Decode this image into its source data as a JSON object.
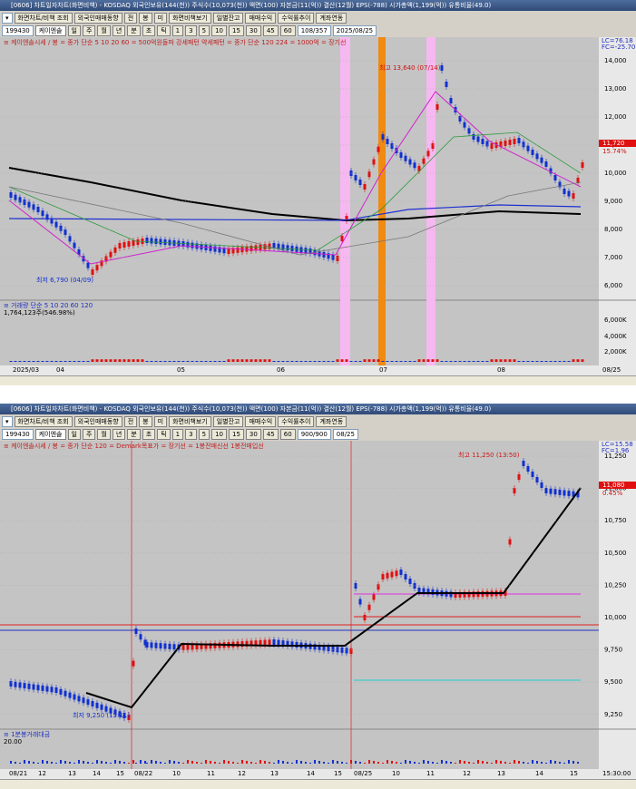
{
  "windows": [
    {
      "title": "[0606] 차트일자차트(화면비책) - KOSDAQ 외국인보유(144(천)) 주식수(10,073(천)) 액면(100) 자본금(11(억)) 결산(12월) EPS(-788) 시가총액(1,199(억)) 유통비율(49.0)",
      "toolbar": [
        "화면차트/비책 조회",
        "외국인매매동향",
        "전",
        "봉",
        "미",
        "화면비책보기",
        "일별잔고",
        "매매수익",
        "수익률추이",
        "계좌연동"
      ],
      "code": "199430",
      "name": "케이엔솔",
      "periods": [
        "일",
        "주",
        "월",
        "년",
        "분",
        "초",
        "틱",
        "1",
        "3",
        "5",
        "10",
        "15",
        "30",
        "45",
        "60"
      ],
      "count": "108/357",
      "date": "2025/08/25",
      "legend": "≡ 케이엔솔시세 / 봉 = 종가 단순 5 10 20 60 = 500억원돌파 강세패턴 약세패턴 = 종가 단순 120 224 = 1000억 = 장기선",
      "sub_legend": "≡ 거래량 단순 5 10 20 60 120",
      "sub_value": "1,764,123주(546.98%)",
      "high": "최고 13,640 (07/14)",
      "low": "최저 6,790 (04/09)",
      "lc": "LC=76.18",
      "fc": "FC=-25.70",
      "price": "11,720",
      "change": "15.74%",
      "volume_price": "1,764K",
      "yticks": [
        "14,000",
        "13,000",
        "12,000",
        "11,000",
        "10,000",
        "9,000",
        "8,000",
        "7,000",
        "6,000"
      ],
      "volume_ticks": [
        "6,000K",
        "4,000K",
        "2,000K"
      ],
      "xticks": [
        "2025/03",
        "04",
        "05",
        "06",
        "07",
        "08"
      ],
      "last_x": "08/25"
    },
    {
      "title": "[0606] 차트일자차트(화면비책) - KOSDAQ 외국인보유(144(천)) 주식수(10,073(천)) 액면(100) 자본금(11(억)) 결산(12월) EPS(-788) 시가총액(1,199(억)) 유통비율(49.0)",
      "toolbar": [
        "화면차트/비책 조회",
        "외국인매매동향",
        "전",
        "봉",
        "미",
        "화면비책보기",
        "일별잔고",
        "매매수익",
        "수익률추이",
        "계좌연동"
      ],
      "code": "199430",
      "name": "케이엔솔",
      "periods": [
        "일",
        "주",
        "월",
        "년",
        "분",
        "초",
        "틱",
        "1",
        "3",
        "5",
        "10",
        "15",
        "30",
        "45",
        "60"
      ],
      "count": "900/900",
      "date": "08/25",
      "legend": "≡ 케이엔솔시세 / 봉 = 종가 단순 120 = Demark목표가 = 장기선 = 1봉전매신선 1봉전매입선",
      "sub_legend": "≡ 1분봉거래대금",
      "sub_value": "20.00",
      "high": "최고 11,250 (13:50)",
      "low": "최저 9,250 (15:11)",
      "lc": "LC=15.58",
      "fc": "FC=1.96",
      "price": "11,080",
      "change": "0.45%",
      "volume_price": "15:30:00",
      "yticks": [
        "11,250",
        "11,000",
        "10,750",
        "10,500",
        "10,250",
        "10,000",
        "9,750",
        "9,500",
        "9,250"
      ],
      "volume_ticks": [],
      "xticks": [
        "08/21",
        "12",
        "13",
        "14",
        "15",
        "08/22",
        "10",
        "11",
        "12",
        "13",
        "14",
        "15",
        "08/25",
        "10",
        "11",
        "12",
        "13",
        "14",
        "15"
      ],
      "last_x": "15:30:00"
    }
  ]
}
